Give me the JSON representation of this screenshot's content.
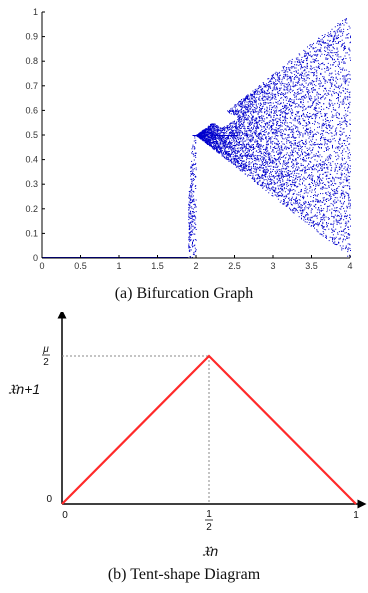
{
  "figures": [
    {
      "caption": "(a) Bifurcation Graph"
    },
    {
      "caption": "(b) Tent-shape Diagram"
    }
  ],
  "chart_data": [
    {
      "type": "scatter",
      "title": "",
      "xlabel": "",
      "ylabel": "",
      "xlim": [
        0,
        4
      ],
      "ylim": [
        0,
        1
      ],
      "xticks": [
        "0",
        "0.5",
        "1",
        "1.5",
        "2",
        "2.5",
        "3",
        "3.5",
        "4"
      ],
      "yticks": [
        "0",
        "0.1",
        "0.2",
        "0.3",
        "0.4",
        "0.5",
        "0.6",
        "0.7",
        "0.8",
        "0.9",
        "1"
      ],
      "color": "#0000cc",
      "series": [
        {
          "x": [
            0,
            0.5,
            1,
            1.5,
            1.9,
            1.95,
            2.0
          ],
          "y": [
            0,
            0,
            0,
            0,
            0.02,
            0.25,
            0.5
          ]
        },
        {
          "x": [
            2.0,
            2.5,
            3.0,
            3.5,
            4.0
          ],
          "y": [
            0.5,
            0.625,
            0.75,
            0.875,
            1.0
          ]
        },
        {
          "x": [
            2.0,
            2.5,
            3.0,
            3.5,
            4.0
          ],
          "y": [
            0.5,
            0.3125,
            0.1875,
            0.0625,
            0.0
          ]
        }
      ]
    },
    {
      "type": "line",
      "title": "",
      "xlabel": "𝔛n",
      "ylabel": "𝔛n+1",
      "xticks": [
        "0",
        "1/2",
        "1"
      ],
      "yticks": [
        "0",
        "μ/2"
      ],
      "line_color": "#ff2a2a",
      "series": [
        {
          "x": [
            0,
            0.5,
            1
          ],
          "y": [
            0,
            1,
            0
          ]
        }
      ]
    }
  ]
}
